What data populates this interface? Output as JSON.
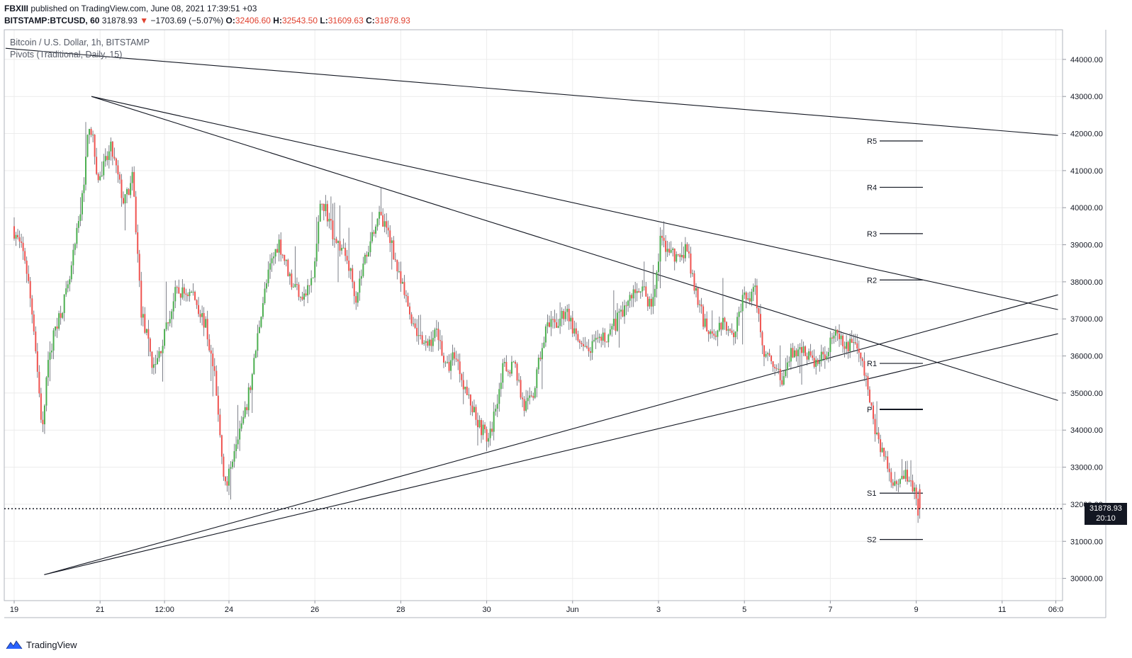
{
  "header": {
    "publisher": "FBXIII",
    "published_text": "published on TradingView.com, June 08, 2021 17:39:51 +03",
    "symbol": "BITSTAMP:BTCUSD, 60",
    "last": "31878.93",
    "change_arrow": "▼",
    "change": "−1703.69 (−5.07%)",
    "o_label": "O:",
    "o": "32406.60",
    "h_label": "H:",
    "h": "32543.50",
    "l_label": "L:",
    "l": "31609.63",
    "c_label": "C:",
    "c": "31878.93"
  },
  "legend": {
    "series": "Bitcoin / U.S. Dollar, 1h, BITSTAMP",
    "indicator": "Pivots (Traditional, Daily, 15)"
  },
  "price_tag": {
    "price": "31878.93",
    "countdown": "20:10"
  },
  "brand": {
    "name": "TradingView",
    "icon": "tradingview-logo-icon"
  },
  "colors": {
    "up": "#26a69a",
    "up_green": "#4caf50",
    "down": "#ef5350",
    "line": "#131722",
    "grid": "#ececec"
  },
  "chart_data": {
    "type": "candlestick",
    "title": "Bitcoin / U.S. Dollar, 1h, BITSTAMP",
    "ylim": [
      29400,
      44800
    ],
    "y_ticks": [
      30000,
      31000,
      32000,
      33000,
      34000,
      35000,
      36000,
      37000,
      38000,
      39000,
      40000,
      41000,
      42000,
      43000,
      44000
    ],
    "x_tick_labels": [
      "19",
      "21",
      "12:00",
      "24",
      "26",
      "28",
      "30",
      "Jun",
      "3",
      "5",
      "7",
      "9",
      "11",
      "06:0"
    ],
    "x_tick_days": [
      0,
      2,
      3.5,
      5,
      7,
      9,
      11,
      13,
      15,
      17,
      19,
      21,
      23,
      24.25
    ],
    "grid": true,
    "last_price": 31878.93,
    "pivots": [
      {
        "name": "R5",
        "value": 41800
      },
      {
        "name": "R4",
        "value": 40550
      },
      {
        "name": "R3",
        "value": 39300
      },
      {
        "name": "R2",
        "value": 38050
      },
      {
        "name": "R1",
        "value": 35800
      },
      {
        "name": "P",
        "value": 34560
      },
      {
        "name": "S1",
        "value": 32300
      },
      {
        "name": "S2",
        "value": 31050
      }
    ],
    "trendlines": [
      {
        "from": {
          "day": -0.2,
          "price": 44300
        },
        "to": {
          "day": 24.3,
          "price": 41950
        }
      },
      {
        "from": {
          "day": 1.8,
          "price": 43000
        },
        "to": {
          "day": 24.3,
          "price": 37250
        }
      },
      {
        "from": {
          "day": 1.8,
          "price": 43000
        },
        "to": {
          "day": 24.3,
          "price": 34800
        }
      },
      {
        "from": {
          "day": 0.7,
          "price": 30100
        },
        "to": {
          "day": 24.3,
          "price": 37650
        }
      },
      {
        "from": {
          "day": 0.7,
          "price": 30100
        },
        "to": {
          "day": 24.3,
          "price": 36600
        }
      }
    ],
    "price_path": [
      [
        0.0,
        39500
      ],
      [
        0.3,
        38600
      ],
      [
        0.5,
        36800
      ],
      [
        0.7,
        33900
      ],
      [
        0.8,
        35500
      ],
      [
        1.0,
        36800
      ],
      [
        1.3,
        37800
      ],
      [
        1.6,
        40000
      ],
      [
        1.8,
        42400
      ],
      [
        2.0,
        40700
      ],
      [
        2.3,
        41600
      ],
      [
        2.6,
        40100
      ],
      [
        2.8,
        40800
      ],
      [
        3.0,
        37200
      ],
      [
        3.3,
        35600
      ],
      [
        3.6,
        36800
      ],
      [
        3.8,
        37700
      ],
      [
        4.2,
        37700
      ],
      [
        4.5,
        36800
      ],
      [
        4.7,
        35500
      ],
      [
        4.9,
        33000
      ],
      [
        5.0,
        32500
      ],
      [
        5.2,
        33800
      ],
      [
        5.4,
        34300
      ],
      [
        5.6,
        35600
      ],
      [
        5.8,
        37300
      ],
      [
        6.0,
        38400
      ],
      [
        6.2,
        39100
      ],
      [
        6.5,
        38000
      ],
      [
        6.8,
        37600
      ],
      [
        7.0,
        38100
      ],
      [
        7.2,
        40300
      ],
      [
        7.5,
        39200
      ],
      [
        7.8,
        38600
      ],
      [
        8.0,
        37600
      ],
      [
        8.2,
        38600
      ],
      [
        8.5,
        39800
      ],
      [
        8.8,
        39200
      ],
      [
        9.0,
        38100
      ],
      [
        9.3,
        37000
      ],
      [
        9.6,
        36200
      ],
      [
        9.9,
        36700
      ],
      [
        10.1,
        35600
      ],
      [
        10.3,
        36100
      ],
      [
        10.6,
        34900
      ],
      [
        10.9,
        34100
      ],
      [
        11.1,
        33700
      ],
      [
        11.4,
        35600
      ],
      [
        11.7,
        35800
      ],
      [
        11.9,
        34600
      ],
      [
        12.1,
        34800
      ],
      [
        12.4,
        36700
      ],
      [
        12.7,
        36900
      ],
      [
        12.9,
        37300
      ],
      [
        13.1,
        36500
      ],
      [
        13.3,
        36100
      ],
      [
        13.6,
        36300
      ],
      [
        13.9,
        36600
      ],
      [
        14.1,
        37000
      ],
      [
        14.4,
        37600
      ],
      [
        14.6,
        37900
      ],
      [
        14.9,
        37300
      ],
      [
        15.1,
        39200
      ],
      [
        15.3,
        38800
      ],
      [
        15.5,
        38600
      ],
      [
        15.7,
        38900
      ],
      [
        15.9,
        37700
      ],
      [
        16.1,
        36900
      ],
      [
        16.3,
        36600
      ],
      [
        16.6,
        36900
      ],
      [
        16.8,
        36700
      ],
      [
        17.0,
        37500
      ],
      [
        17.3,
        37700
      ],
      [
        17.5,
        36100
      ],
      [
        17.7,
        35900
      ],
      [
        17.9,
        35300
      ],
      [
        18.1,
        36000
      ],
      [
        18.4,
        36200
      ],
      [
        18.7,
        35800
      ],
      [
        18.9,
        36000
      ],
      [
        19.1,
        36600
      ],
      [
        19.4,
        36200
      ],
      [
        19.6,
        36500
      ],
      [
        19.8,
        35700
      ],
      [
        20.0,
        34600
      ],
      [
        20.1,
        33900
      ],
      [
        20.3,
        33300
      ],
      [
        20.5,
        32600
      ],
      [
        20.8,
        32900
      ],
      [
        21.0,
        32400
      ],
      [
        21.05,
        31879
      ]
    ]
  }
}
